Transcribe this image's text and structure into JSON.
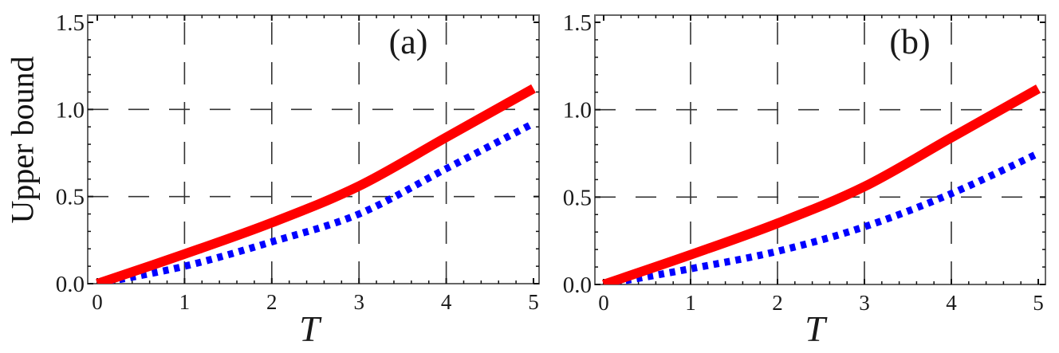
{
  "figure": {
    "ylabel": "Upper bound",
    "xlabel": "T"
  },
  "colors": {
    "red_curve": "#ff0000",
    "blue_curve": "#0000ff",
    "grid": "#333333",
    "frame": "#666666"
  },
  "chart_data": [
    {
      "type": "line",
      "panel_label": "(a)",
      "title": "",
      "xlabel": "T",
      "ylabel": "Upper bound",
      "xlim": [
        -0.1,
        5.1
      ],
      "ylim": [
        0,
        1.6
      ],
      "xticks": [
        "0",
        "1",
        "2",
        "3",
        "4",
        "5"
      ],
      "yticks": [
        "0.0",
        "0.5",
        "1.0",
        "1.5"
      ],
      "grid": "dashed",
      "x": [
        0,
        1,
        2,
        3,
        4,
        5
      ],
      "series": [
        {
          "name": "solid red",
          "style": "solid",
          "color": "#ff0000",
          "values": [
            0.0,
            0.17,
            0.35,
            0.56,
            0.84,
            1.12
          ]
        },
        {
          "name": "dotted blue",
          "style": "dotted",
          "color": "#0000ff",
          "values": [
            0.0,
            0.1,
            0.24,
            0.4,
            0.66,
            0.92
          ]
        }
      ]
    },
    {
      "type": "line",
      "panel_label": "(b)",
      "title": "",
      "xlabel": "T",
      "ylabel": "",
      "xlim": [
        -0.1,
        5.1
      ],
      "ylim": [
        0,
        1.6
      ],
      "xticks": [
        "0",
        "1",
        "2",
        "3",
        "4",
        "5"
      ],
      "yticks": [
        "0.0",
        "0.5",
        "1.0",
        "1.5"
      ],
      "grid": "dashed",
      "x": [
        0,
        1,
        2,
        3,
        4,
        5
      ],
      "series": [
        {
          "name": "solid red",
          "style": "solid",
          "color": "#ff0000",
          "values": [
            0.0,
            0.17,
            0.35,
            0.56,
            0.84,
            1.12
          ]
        },
        {
          "name": "dotted blue",
          "style": "dotted",
          "color": "#0000ff",
          "values": [
            0.0,
            0.09,
            0.19,
            0.33,
            0.52,
            0.75
          ]
        }
      ]
    }
  ]
}
